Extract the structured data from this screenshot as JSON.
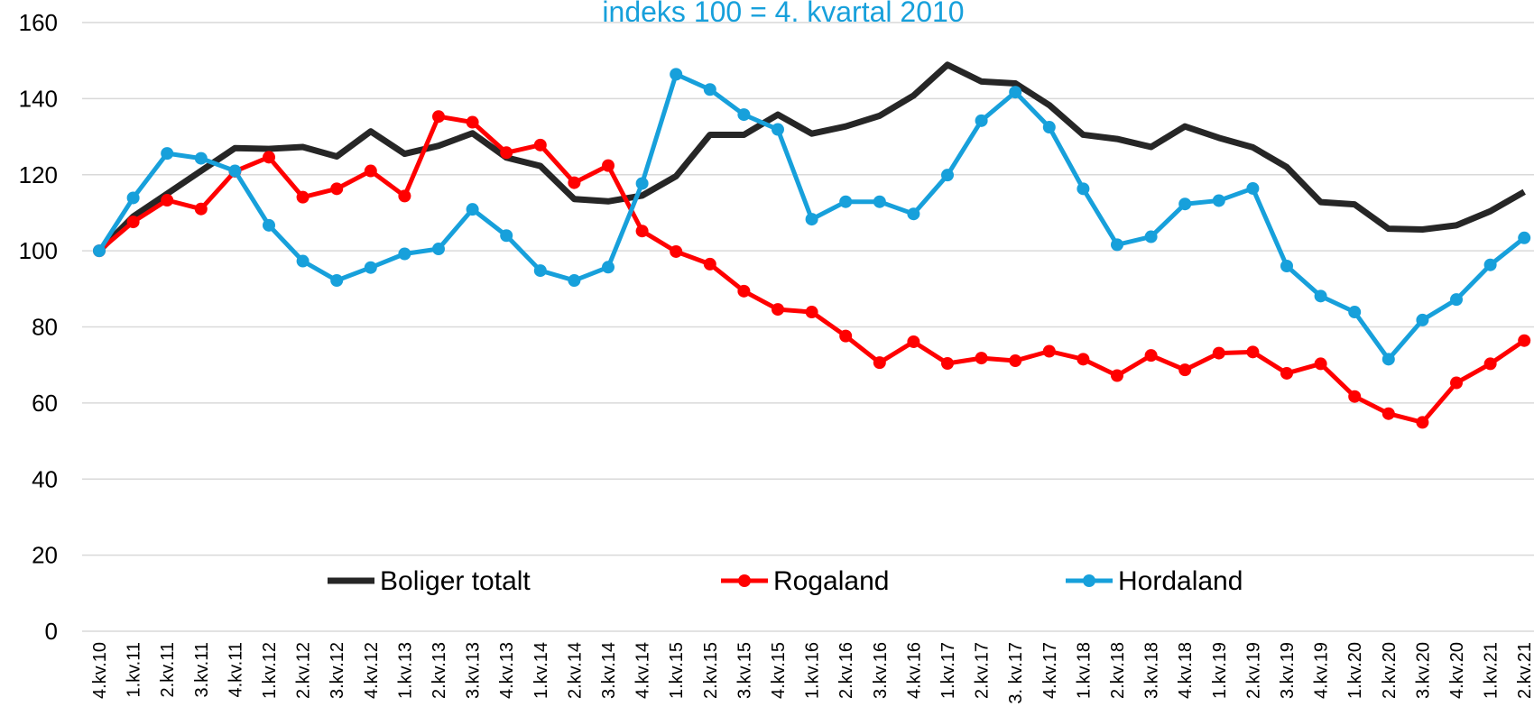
{
  "chart_data": {
    "type": "line",
    "subtitle": "indeks 100 = 4. kvartal 2010",
    "categories": [
      "4.kv.10",
      "1.kv.11",
      "2.kv.11",
      "3.kv.11",
      "4.kv.11",
      "1.kv.12",
      "2.kv.12",
      "3.kv.12",
      "4.kv.12",
      "1.kv.13",
      "2.kv.13",
      "3.kv.13",
      "4.kv.13",
      "1.kv.14",
      "2.kv.14",
      "3.kv.14",
      "4.kv.14",
      "1.kv.15",
      "2.kv.15",
      "3.kv.15",
      "4.kv.15",
      "1.kv.16",
      "2.kv.16",
      "3.kv.16",
      "4.kv.16",
      "1.kv.17",
      "2.kv.17",
      "3. kv.17",
      "4.kv.17",
      "1.kv.18",
      "2.kv.18",
      "3.kv.18",
      "4.kv.18",
      "1.kv.19",
      "2.kv.19",
      "3.kv.19",
      "4.kv.19",
      "1.kv.20",
      "2.kv.20",
      "3.kv.20",
      "4.kv.20",
      "1.kv.21",
      "2.kv.21"
    ],
    "series": [
      {
        "name": "Boliger totalt",
        "color": "#262626",
        "markers": false,
        "values": [
          100,
          109,
          115,
          121,
          127,
          126.8,
          127.3,
          124.8,
          131.4,
          125.5,
          127.6,
          130.9,
          124.5,
          122.3,
          113.6,
          113,
          114.5,
          119.6,
          130.5,
          130.5,
          135.8,
          130.8,
          132.7,
          135.5,
          140.8,
          148.9,
          144.5,
          144,
          138.3,
          130.5,
          129.4,
          127.3,
          132.7,
          129.7,
          127.2,
          122,
          112.8,
          112.2,
          105.8,
          105.6,
          106.7,
          110.4,
          115.5
        ]
      },
      {
        "name": "Rogaland",
        "color": "#ff0000",
        "markers": true,
        "values": [
          100,
          107.6,
          113.3,
          111,
          120.9,
          124.6,
          114.1,
          116.3,
          121,
          114.4,
          135.3,
          133.8,
          125.8,
          127.8,
          117.9,
          122.4,
          105.2,
          99.8,
          96.5,
          89.4,
          84.6,
          83.9,
          77.6,
          70.6,
          76.1,
          70.4,
          71.8,
          71.1,
          73.6,
          71.5,
          67.2,
          72.5,
          68.7,
          73.1,
          73.4,
          67.8,
          70.3,
          61.7,
          57.2,
          54.9,
          65.3,
          70.3,
          76.4
        ]
      },
      {
        "name": "Hordaland",
        "color": "#17a0db",
        "markers": true,
        "values": [
          100,
          113.9,
          125.6,
          124.3,
          121,
          106.7,
          97.3,
          92.2,
          95.6,
          99.2,
          100.5,
          110.9,
          104,
          94.8,
          92.2,
          95.7,
          117.7,
          146.4,
          142.4,
          135.8,
          131.9,
          108.3,
          112.9,
          112.9,
          109.7,
          119.9,
          134.2,
          141.7,
          132.5,
          116.3,
          101.6,
          103.7,
          112.3,
          113.2,
          116.4,
          96,
          88.1,
          83.9,
          71.5,
          81.8,
          87.2,
          96.3,
          103.4
        ]
      }
    ],
    "ylim": [
      0,
      160
    ],
    "yticks": [
      0,
      20,
      40,
      60,
      80,
      100,
      120,
      140,
      160
    ],
    "grid": true,
    "legend": "bottom"
  }
}
